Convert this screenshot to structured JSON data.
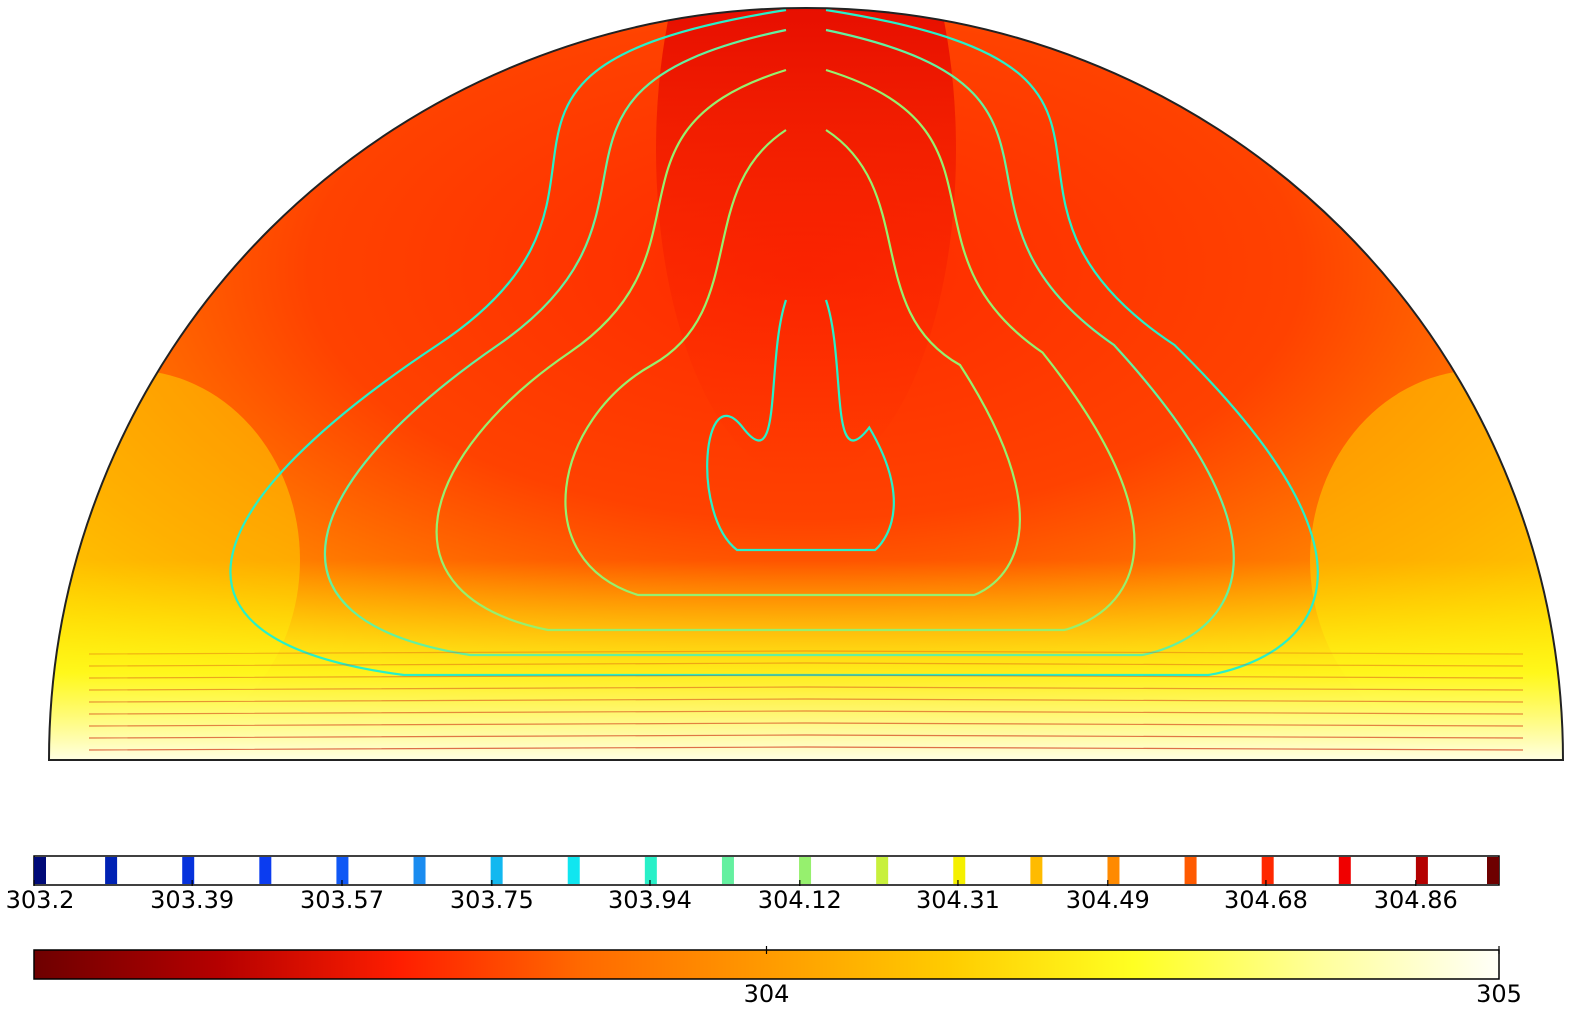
{
  "chart_data": {
    "type": "heatmap",
    "title": "",
    "domain_shape": "semicircle",
    "contour_legend": {
      "tick_labels": [
        "303.2",
        "303.39",
        "303.57",
        "303.75",
        "303.94",
        "304.12",
        "304.31",
        "304.49",
        "304.68",
        "304.86"
      ],
      "tick_values": [
        303.2,
        303.39,
        303.57,
        303.75,
        303.94,
        304.12,
        304.31,
        304.49,
        304.68,
        304.86
      ],
      "range": [
        303.2,
        304.96
      ],
      "level_colors": [
        "#000a78",
        "#0022b4",
        "#0632dc",
        "#0b3cf0",
        "#1058f5",
        "#1a8cf0",
        "#12b8f0",
        "#10e6f0",
        "#28f0c8",
        "#64f0a0",
        "#96f06e",
        "#c8f03c",
        "#f5f000",
        "#ffbb00",
        "#ff8a00",
        "#ff5a00",
        "#ff2800",
        "#f00000",
        "#b40000",
        "#6e0000"
      ]
    },
    "color_legend": {
      "tick_labels": [
        "304",
        "305"
      ],
      "tick_values": [
        304,
        305
      ],
      "range": [
        303.0,
        305.0
      ],
      "colormap": "thermal",
      "colors": [
        "#6e0000",
        "#b40000",
        "#ff1e00",
        "#ff6a00",
        "#ff9a00",
        "#ffcc00",
        "#ffff22",
        "#ffff99",
        "#fffff8"
      ]
    }
  }
}
